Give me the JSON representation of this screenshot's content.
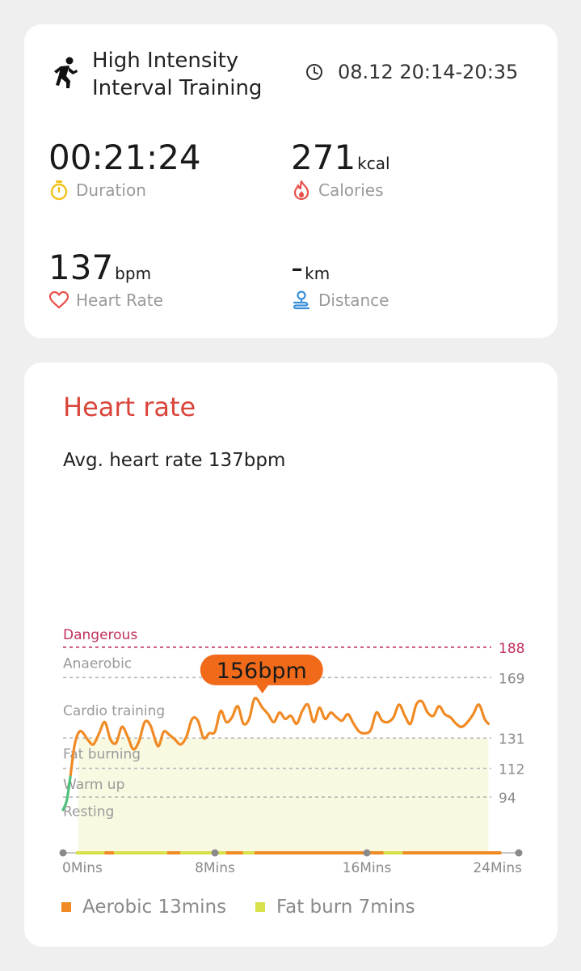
{
  "summary": {
    "workout_icon": "running-person-icon",
    "title_line1": "High Intensity",
    "title_line2": "Interval Training",
    "clock_icon": "clock-icon",
    "time_range": "08.12 20:14-20:35",
    "metrics": {
      "duration": {
        "value": "00:21:24",
        "unit": "",
        "label": "Duration",
        "icon": "stopwatch-icon",
        "color": "#f2c21b"
      },
      "calories": {
        "value": "271",
        "unit": "kcal",
        "label": "Calories",
        "icon": "flame-icon",
        "color": "#e8514a"
      },
      "heart_rate": {
        "value": "137",
        "unit": "bpm",
        "label": "Heart Rate",
        "icon": "heart-icon",
        "color": "#e8514a"
      },
      "distance": {
        "value": "-",
        "unit": "km",
        "label": "Distance",
        "icon": "route-pin-icon",
        "color": "#3a8fd8"
      }
    }
  },
  "heart_rate_card": {
    "title": "Heart rate",
    "avg_text": "Avg. heart rate 137bpm",
    "peak_label": "156bpm",
    "legend": [
      {
        "label": "Aerobic 13mins",
        "color": "#f08a24"
      },
      {
        "label": "Fat burn 7mins",
        "color": "#d8e04a"
      }
    ]
  },
  "chart_data": {
    "type": "line",
    "title": "Heart rate",
    "x_tick_labels": [
      "0Mins",
      "8Mins",
      "16Mins",
      "24Mins"
    ],
    "xlim": [
      0,
      24
    ],
    "ylim": [
      60,
      200
    ],
    "zones": [
      {
        "name": "Dangerous",
        "threshold": 188,
        "color": "#c0305a"
      },
      {
        "name": "Anaerobic",
        "threshold": 169,
        "color": "#9a9a9a"
      },
      {
        "name": "Cardio training",
        "threshold": 131,
        "color": "#9a9a9a"
      },
      {
        "name": "Fat burning",
        "threshold": 112,
        "color": "#9a9a9a"
      },
      {
        "name": "Warm up",
        "threshold": 94,
        "color": "#9a9a9a"
      },
      {
        "name": "Resting",
        "threshold": null,
        "color": "#9a9a9a"
      }
    ],
    "peak": {
      "x": 10.5,
      "y": 156
    },
    "series": [
      {
        "line_color": "#f08a24",
        "fill_color": "#f9f9e2",
        "x": [
          0.0,
          0.2,
          0.4,
          0.6,
          0.8,
          1.0,
          1.3,
          1.6,
          1.9,
          2.2,
          2.5,
          2.8,
          3.1,
          3.4,
          3.7,
          4.0,
          4.3,
          4.6,
          5.0,
          5.3,
          5.6,
          5.9,
          6.2,
          6.5,
          6.8,
          7.1,
          7.4,
          7.7,
          8.0,
          8.3,
          8.6,
          8.9,
          9.2,
          9.5,
          9.8,
          10.1,
          10.5,
          10.8,
          11.1,
          11.4,
          11.7,
          12.0,
          12.3,
          12.6,
          12.9,
          13.2,
          13.5,
          13.8,
          14.1,
          14.4,
          14.7,
          15.0,
          15.3,
          15.6,
          15.9,
          16.2,
          16.5,
          16.8,
          17.1,
          17.4,
          17.7,
          18.0,
          18.3,
          18.6,
          18.9,
          19.2,
          19.5,
          19.8,
          20.1,
          20.4,
          20.7,
          21.0,
          21.3,
          21.6,
          21.9,
          22.2,
          22.4
        ],
        "values": [
          86,
          92,
          108,
          126,
          134,
          135,
          130,
          127,
          134,
          141,
          130,
          128,
          138,
          132,
          124,
          129,
          141,
          139,
          126,
          135,
          133,
          130,
          127,
          132,
          143,
          142,
          131,
          134,
          135,
          148,
          141,
          144,
          151,
          140,
          143,
          156,
          150,
          146,
          141,
          147,
          143,
          145,
          140,
          148,
          152,
          141,
          150,
          143,
          147,
          144,
          142,
          146,
          140,
          135,
          134,
          136,
          147,
          142,
          141,
          144,
          152,
          145,
          140,
          152,
          154,
          147,
          145,
          151,
          146,
          144,
          140,
          138,
          141,
          146,
          152,
          143,
          140
        ],
        "zone_colors": [
          "#4ec27a",
          "#4ec27a",
          "#7cc24a",
          "#c8a232",
          "#f08a24"
        ]
      }
    ],
    "zone_bar": [
      {
        "from": 0.0,
        "to": 1.5,
        "color": "#d8e04a"
      },
      {
        "from": 1.5,
        "to": 2.0,
        "color": "#f08a24"
      },
      {
        "from": 2.0,
        "to": 4.8,
        "color": "#d8e04a"
      },
      {
        "from": 4.8,
        "to": 5.5,
        "color": "#f08a24"
      },
      {
        "from": 5.5,
        "to": 7.9,
        "color": "#d8e04a"
      },
      {
        "from": 7.9,
        "to": 8.8,
        "color": "#f08a24"
      },
      {
        "from": 8.8,
        "to": 9.4,
        "color": "#d8e04a"
      },
      {
        "from": 9.4,
        "to": 16.2,
        "color": "#f08a24"
      },
      {
        "from": 16.2,
        "to": 17.2,
        "color": "#d8e04a"
      },
      {
        "from": 17.2,
        "to": 22.4,
        "color": "#f08a24"
      }
    ]
  }
}
